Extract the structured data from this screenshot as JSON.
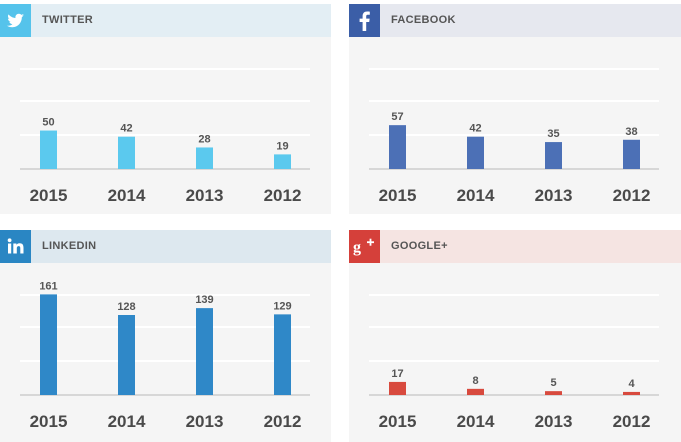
{
  "panels": [
    {
      "id": "twitter",
      "title": "TWITTER",
      "icon": "twitter-bird-icon",
      "icon_bg": "#55c3eb",
      "header_bg": "#e3eef4",
      "bar_color": "#5bc9ee"
    },
    {
      "id": "facebook",
      "title": "FACEBOOK",
      "icon": "facebook-f-icon",
      "icon_bg": "#3b5ea7",
      "header_bg": "#e6e8ef",
      "bar_color": "#4c70b6"
    },
    {
      "id": "linkedin",
      "title": "LINKEDIN",
      "icon": "linkedin-in-icon",
      "icon_bg": "#2a86c3",
      "header_bg": "#dde8ef",
      "bar_color": "#2f88c8"
    },
    {
      "id": "googleplus",
      "title": "GOOGLE+",
      "icon": "google-plus-icon",
      "icon_bg": "#d5403a",
      "header_bg": "#f5e4e2",
      "bar_color": "#d84a3e"
    }
  ],
  "chart_data": [
    {
      "type": "bar",
      "title": "TWITTER",
      "categories": [
        "2015",
        "2014",
        "2013",
        "2012"
      ],
      "values": [
        50,
        42,
        28,
        19
      ],
      "ylim": [
        0,
        130
      ],
      "grid": true
    },
    {
      "type": "bar",
      "title": "FACEBOOK",
      "categories": [
        "2015",
        "2014",
        "2013",
        "2012"
      ],
      "values": [
        57,
        42,
        35,
        38
      ],
      "ylim": [
        0,
        130
      ],
      "grid": true
    },
    {
      "type": "bar",
      "title": "LINKEDIN",
      "categories": [
        "2015",
        "2014",
        "2013",
        "2012"
      ],
      "values": [
        161,
        128,
        139,
        129
      ],
      "ylim": [
        0,
        160
      ],
      "grid": true
    },
    {
      "type": "bar",
      "title": "GOOGLE+",
      "categories": [
        "2015",
        "2014",
        "2013",
        "2012"
      ],
      "values": [
        17,
        8,
        5,
        4
      ],
      "ylim": [
        0,
        130
      ],
      "grid": true
    }
  ]
}
